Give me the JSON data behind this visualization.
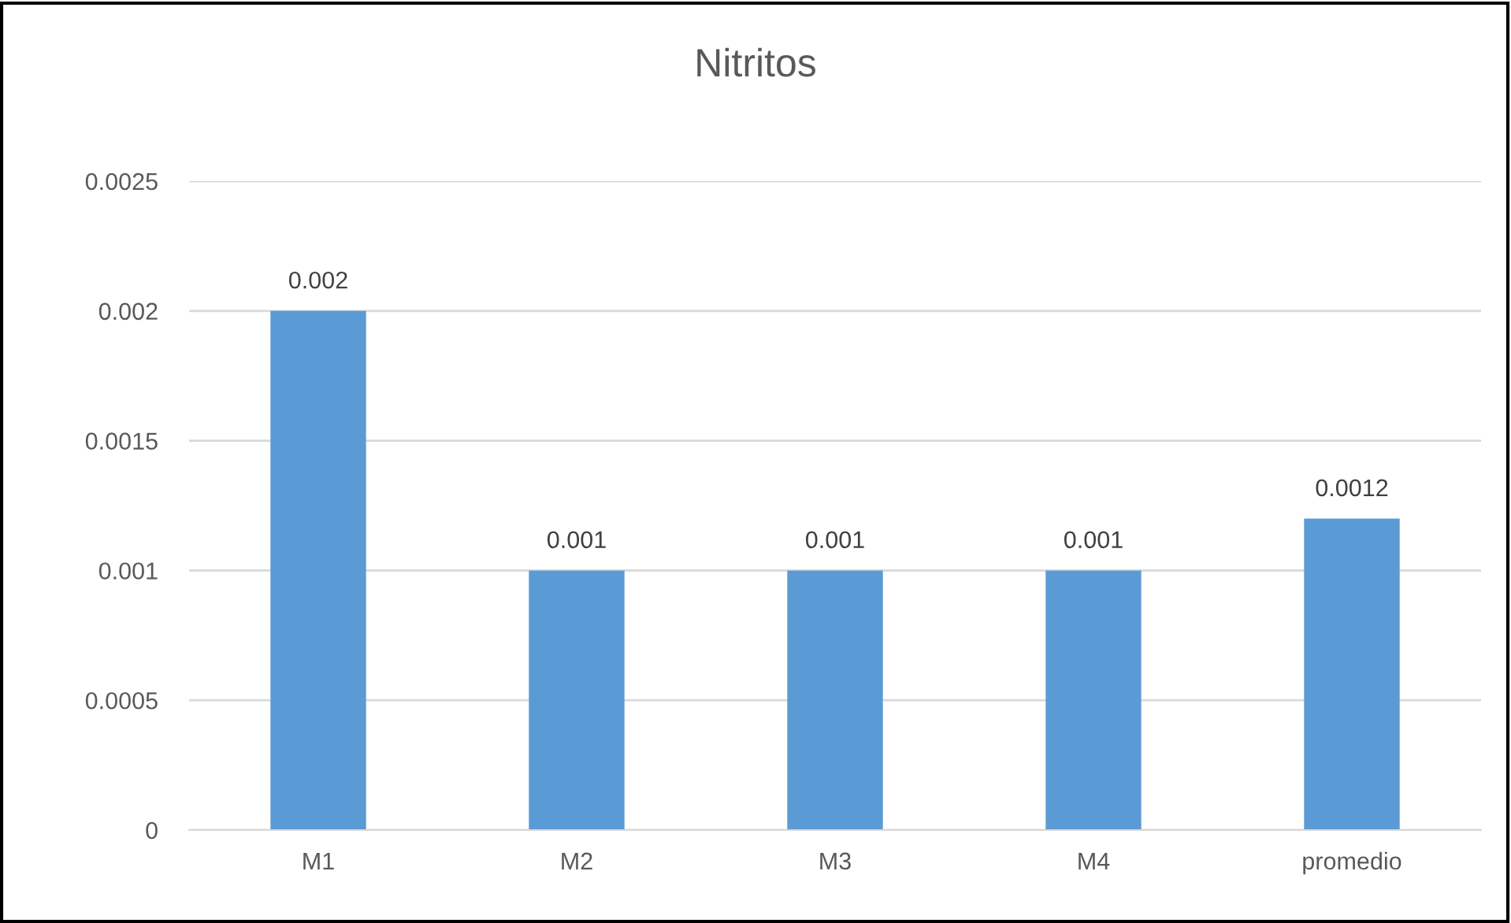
{
  "chart_data": {
    "type": "bar",
    "title": "Nitritos",
    "categories": [
      "M1",
      "M2",
      "M3",
      "M4",
      "promedio"
    ],
    "values": [
      0.002,
      0.001,
      0.001,
      0.001,
      0.0012
    ],
    "color": "#5b9bd5",
    "ylim": [
      0,
      0.0025
    ],
    "yticks": [
      0,
      0.0005,
      0.001,
      0.0015,
      0.002,
      0.0025
    ],
    "grid": "y",
    "data_labels": true,
    "legend": false
  }
}
